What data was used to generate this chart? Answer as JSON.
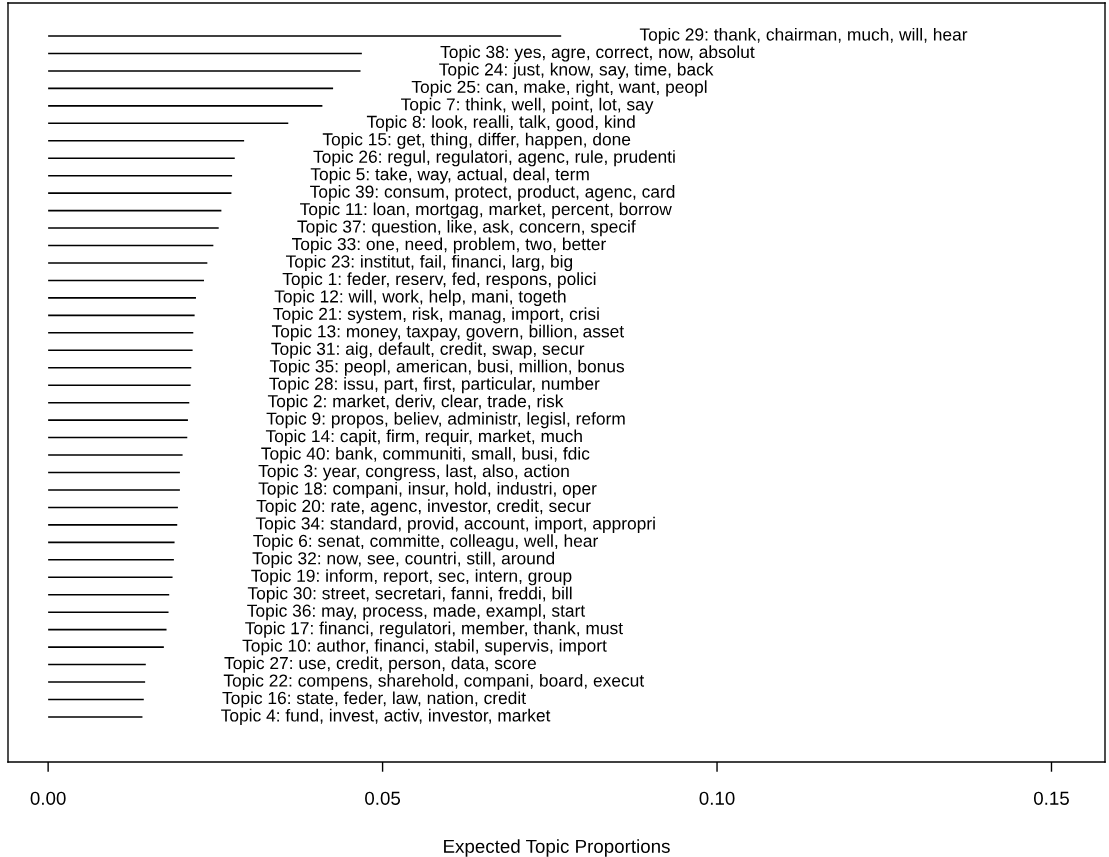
{
  "chart_data": {
    "type": "bar",
    "orientation": "horizontal",
    "xlabel": "Expected Topic Proportions",
    "categories": [
      "Topic 29: thank, chairman, much, will, hear",
      "Topic 38: yes, agre, correct, now, absolut",
      "Topic 24: just, know, say, time, back",
      "Topic 25: can, make, right, want, peopl",
      "Topic 7: think, well, point, lot, say",
      "Topic 8: look, realli, talk, good, kind",
      "Topic 15: get, thing, differ, happen, done",
      "Topic 26: regul, regulatori, agenc, rule, prudenti",
      "Topic 5: take, way, actual, deal, term",
      "Topic 39: consum, protect, product, agenc, card",
      "Topic 11: loan, mortgag, market, percent, borrow",
      "Topic 37: question, like, ask, concern, specif",
      "Topic 33: one, need, problem, two, better",
      "Topic 23: institut, fail, financi, larg, big",
      "Topic 1: feder, reserv, fed, respons, polici",
      "Topic 12: will, work, help, mani, togeth",
      "Topic 21: system, risk, manag, import, crisi",
      "Topic 13: money, taxpay, govern, billion, asset",
      "Topic 31: aig, default, credit, swap, secur",
      "Topic 35: peopl, american, busi, million, bonus",
      "Topic 28: issu, part, first, particular, number",
      "Topic 2: market, deriv, clear, trade, risk",
      "Topic 9: propos, believ, administr, legisl, reform",
      "Topic 14: capit, firm, requir, market, much",
      "Topic 40: bank, communiti, small, busi, fdic",
      "Topic 3: year, congress, last, also, action",
      "Topic 18: compani, insur, hold, industri, oper",
      "Topic 20: rate, agenc, investor, credit, secur",
      "Topic 34: standard, provid, account, import, appropri",
      "Topic 6: senat, committe, colleagu, well, hear",
      "Topic 32: now, see, countri, still, around",
      "Topic 19: inform, report, sec, intern, group",
      "Topic 30: street, secretari, fanni, freddi, bill",
      "Topic 36: may, process, made, exampl, start",
      "Topic 17: financi, regulatori, member, thank, must",
      "Topic 10: author, financi, stabil, supervis, import",
      "Topic 27: use, credit, person, data, score",
      "Topic 22: compens, sharehold, compani, board, execut",
      "Topic 16: state, feder, law, nation, credit",
      "Topic 4: fund, invest, activ, investor, market"
    ],
    "values": [
      0.0767,
      0.0469,
      0.0467,
      0.0426,
      0.041,
      0.0359,
      0.0293,
      0.0279,
      0.0275,
      0.0274,
      0.0259,
      0.0255,
      0.0247,
      0.0238,
      0.0233,
      0.0221,
      0.0219,
      0.0217,
      0.0216,
      0.0214,
      0.0213,
      0.0211,
      0.0209,
      0.0208,
      0.0201,
      0.0197,
      0.0197,
      0.0194,
      0.0193,
      0.0189,
      0.0188,
      0.0186,
      0.0181,
      0.018,
      0.0177,
      0.0173,
      0.0146,
      0.0145,
      0.0143,
      0.0141
    ],
    "color": "#000000",
    "xlim": [
      -0.006,
      0.158
    ],
    "xticks": [
      {
        "value": 0,
        "label": "0.00"
      },
      {
        "value": 0.05,
        "label": "0.05"
      },
      {
        "value": 0.1,
        "label": "0.10"
      },
      {
        "value": 0.15,
        "label": "0.15"
      }
    ],
    "tick_labels": "x",
    "grid": false,
    "legend": false
  }
}
